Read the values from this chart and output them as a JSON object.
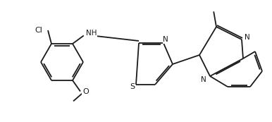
{
  "figsize": [
    3.86,
    1.73
  ],
  "dpi": 100,
  "background_color": "#ffffff",
  "line_color": "#1a1a1a",
  "line_width": 1.3,
  "font_size": 7.5,
  "xlim": [
    0,
    386
  ],
  "ylim": [
    0,
    173
  ]
}
